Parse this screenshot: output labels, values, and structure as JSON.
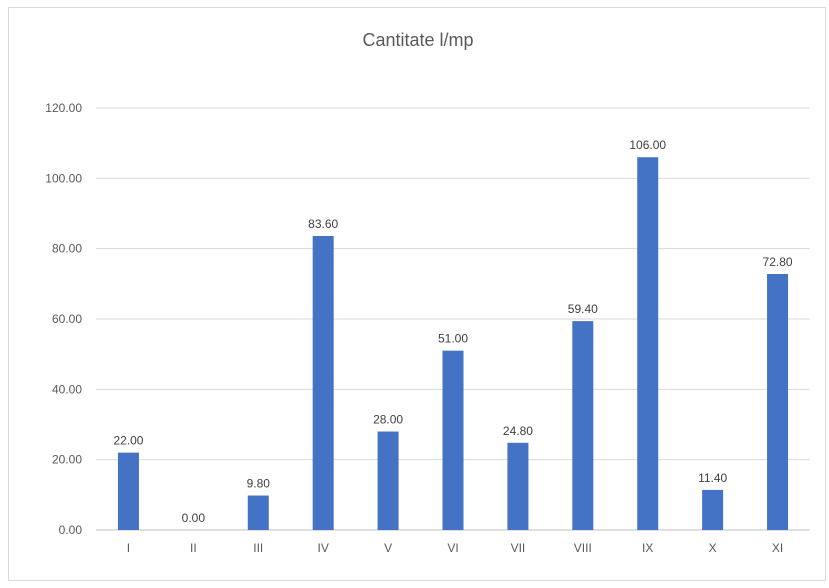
{
  "chart_data": {
    "type": "bar",
    "title": "Cantitate l/mp",
    "xlabel": "",
    "ylabel": "",
    "categories": [
      "I",
      "II",
      "III",
      "IV",
      "V",
      "VI",
      "VII",
      "VIII",
      "IX",
      "X",
      "XI"
    ],
    "values": [
      22.0,
      0.0,
      9.8,
      83.6,
      28.0,
      51.0,
      24.8,
      59.4,
      106.0,
      11.4,
      72.8
    ],
    "data_labels": [
      "22.00",
      "0.00",
      "9.80",
      "83.60",
      "28.00",
      "51.00",
      "24.80",
      "59.40",
      "106.00",
      "11.40",
      "72.80"
    ],
    "ylim": [
      0,
      120
    ],
    "yticks": [
      "0.00",
      "20.00",
      "40.00",
      "60.00",
      "80.00",
      "100.00",
      "120.00"
    ],
    "grid": true,
    "legend": "none",
    "bar_color": "#4472c4",
    "grid_color": "#d9d9d9"
  }
}
